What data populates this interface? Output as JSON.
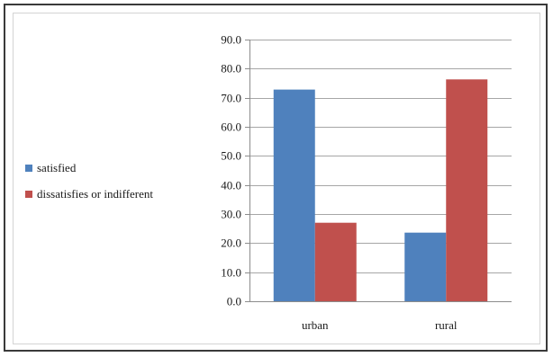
{
  "chart_data": {
    "type": "bar",
    "categories": [
      "urban",
      "rural"
    ],
    "series": [
      {
        "name": "satisfied",
        "values": [
          72.8,
          23.6
        ],
        "color": "#4F81BD"
      },
      {
        "name": "dissatisfies or indifferent",
        "values": [
          27.0,
          76.3
        ],
        "color": "#C0504D"
      }
    ],
    "ylim": [
      0,
      90
    ],
    "yticks": [
      "0.0",
      "10.0",
      "20.0",
      "30.0",
      "40.0",
      "50.0",
      "60.0",
      "70.0",
      "80.0",
      "90.0"
    ],
    "grid": true,
    "legend_position": "left",
    "title": "",
    "xlabel": "",
    "ylabel": ""
  }
}
